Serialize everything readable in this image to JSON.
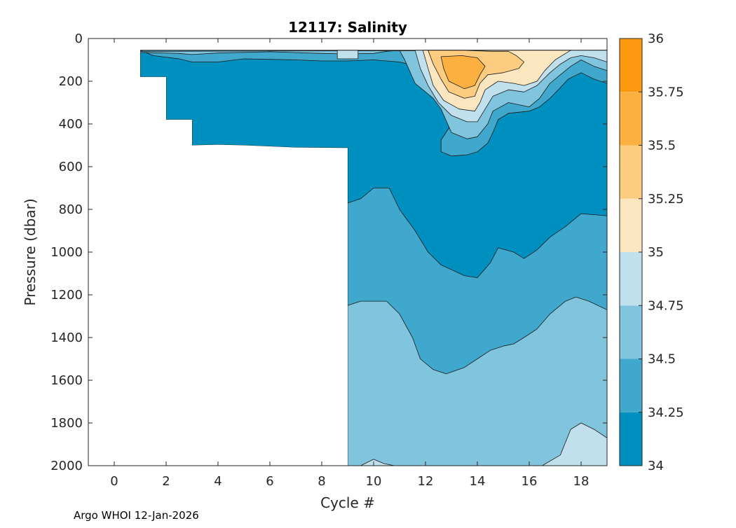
{
  "chart_data": {
    "type": "contour",
    "title": "12117:  Salinity",
    "xlabel": "Cycle #",
    "ylabel": "Pressure (dbar)",
    "xlim": [
      -1,
      19
    ],
    "ylim": [
      2000,
      0
    ],
    "y_reversed": true,
    "xticks": [
      0,
      2,
      4,
      6,
      8,
      10,
      12,
      14,
      16,
      18
    ],
    "yticks": [
      0,
      200,
      400,
      600,
      800,
      1000,
      1200,
      1400,
      1600,
      1800,
      2000
    ],
    "grid": false,
    "colorbar": {
      "position": "right",
      "ticks": [
        34,
        34.25,
        34.5,
        34.75,
        35,
        35.25,
        35.5,
        35.75,
        36
      ],
      "levels": [
        {
          "min": 34,
          "max": 34.25,
          "color": "#0090bf"
        },
        {
          "min": 34.25,
          "max": 34.5,
          "color": "#40a8cc"
        },
        {
          "min": 34.5,
          "max": 34.75,
          "color": "#80c4de"
        },
        {
          "min": 34.75,
          "max": 35,
          "color": "#bfe0ec"
        },
        {
          "min": 35,
          "max": 35.25,
          "color": "#fce6c0"
        },
        {
          "min": 35.25,
          "max": 35.5,
          "color": "#fccc80"
        },
        {
          "min": 35.5,
          "max": 35.75,
          "color": "#fcb040"
        },
        {
          "min": 35.75,
          "max": 36,
          "color": "#fc9910"
        }
      ]
    },
    "regions": [
      {
        "level": 0,
        "points": [
          [
            1,
            55
          ],
          [
            1,
            180
          ],
          [
            2,
            180
          ],
          [
            2,
            380
          ],
          [
            3,
            380
          ],
          [
            3,
            500
          ],
          [
            4,
            497
          ],
          [
            5,
            500
          ],
          [
            6,
            505
          ],
          [
            7,
            510
          ],
          [
            9,
            512
          ],
          [
            9,
            2000
          ],
          [
            19,
            2000
          ],
          [
            19,
            55
          ]
        ]
      },
      {
        "level": 1,
        "points": [
          [
            9,
            2000
          ],
          [
            9,
            770
          ],
          [
            9.5,
            750
          ],
          [
            10,
            700
          ],
          [
            10.6,
            700
          ],
          [
            11,
            800
          ],
          [
            11.6,
            900
          ],
          [
            12.1,
            1000
          ],
          [
            12.6,
            1060
          ],
          [
            13.5,
            1110
          ],
          [
            14,
            1120
          ],
          [
            14.5,
            1050
          ],
          [
            14.8,
            980
          ],
          [
            15.4,
            1000
          ],
          [
            15.8,
            1030
          ],
          [
            16.3,
            990
          ],
          [
            16.8,
            930
          ],
          [
            17.4,
            880
          ],
          [
            18,
            820
          ],
          [
            19,
            830
          ],
          [
            19,
            2000
          ]
        ]
      },
      {
        "level": 2,
        "points": [
          [
            9,
            2000
          ],
          [
            9,
            1250
          ],
          [
            9.5,
            1230
          ],
          [
            10.5,
            1230
          ],
          [
            11,
            1290
          ],
          [
            11.5,
            1400
          ],
          [
            11.8,
            1500
          ],
          [
            12.3,
            1550
          ],
          [
            12.8,
            1570
          ],
          [
            13.5,
            1540
          ],
          [
            14,
            1500
          ],
          [
            14.5,
            1460
          ],
          [
            15,
            1440
          ],
          [
            15.4,
            1430
          ],
          [
            15.8,
            1400
          ],
          [
            16.3,
            1360
          ],
          [
            16.8,
            1290
          ],
          [
            17.4,
            1230
          ],
          [
            17.8,
            1210
          ],
          [
            18.3,
            1230
          ],
          [
            19,
            1270
          ],
          [
            19,
            2000
          ]
        ]
      },
      {
        "level": 3,
        "points": [
          [
            16.5,
            2000
          ],
          [
            17.2,
            1950
          ],
          [
            17.6,
            1830
          ],
          [
            18,
            1800
          ],
          [
            18.5,
            1830
          ],
          [
            19,
            1870
          ],
          [
            19,
            2000
          ]
        ]
      },
      {
        "level": 3,
        "points": [
          [
            9.5,
            2000
          ],
          [
            10,
            1970
          ],
          [
            10.4,
            1990
          ],
          [
            10.8,
            2000
          ]
        ]
      },
      {
        "level": 1,
        "points": [
          [
            1,
            55
          ],
          [
            1.5,
            80
          ],
          [
            2.5,
            95
          ],
          [
            3,
            110
          ],
          [
            4,
            110
          ],
          [
            5,
            95
          ],
          [
            7,
            100
          ],
          [
            8,
            105
          ],
          [
            9,
            105
          ],
          [
            10,
            100
          ],
          [
            11,
            110
          ],
          [
            12,
            140
          ],
          [
            12.4,
            190
          ],
          [
            12.6,
            260
          ],
          [
            12.8,
            310
          ],
          [
            13,
            350
          ],
          [
            12.9,
            420
          ],
          [
            12.6,
            475
          ],
          [
            12.6,
            530
          ],
          [
            13,
            550
          ],
          [
            13.6,
            545
          ],
          [
            14,
            530
          ],
          [
            14.4,
            490
          ],
          [
            14.6,
            440
          ],
          [
            14.8,
            380
          ],
          [
            15.2,
            350
          ],
          [
            16,
            340
          ],
          [
            16.4,
            320
          ],
          [
            16.8,
            280
          ],
          [
            17.2,
            230
          ],
          [
            17.5,
            190
          ],
          [
            18,
            160
          ],
          [
            18.5,
            190
          ],
          [
            19,
            210
          ],
          [
            19,
            55
          ]
        ]
      },
      {
        "level": 2,
        "points": [
          [
            1,
            60
          ],
          [
            1,
            65
          ],
          [
            2.5,
            70
          ],
          [
            3,
            75
          ],
          [
            4,
            68
          ],
          [
            6,
            62
          ],
          [
            8,
            70
          ],
          [
            9,
            72
          ],
          [
            10,
            70
          ],
          [
            10.5,
            60
          ],
          [
            11,
            55
          ],
          [
            11.2,
            100
          ],
          [
            11.6,
            210
          ],
          [
            12.3,
            280
          ],
          [
            12.6,
            330
          ],
          [
            13,
            440
          ],
          [
            13.6,
            470
          ],
          [
            14,
            460
          ],
          [
            14.4,
            400
          ],
          [
            14.6,
            340
          ],
          [
            15.2,
            300
          ],
          [
            16,
            320
          ],
          [
            16.4,
            280
          ],
          [
            16.8,
            210
          ],
          [
            17.2,
            170
          ],
          [
            17.6,
            130
          ],
          [
            18,
            100
          ],
          [
            18.5,
            130
          ],
          [
            19,
            150
          ],
          [
            19,
            55
          ]
        ]
      },
      {
        "level": 3,
        "points": [
          [
            11.6,
            55
          ],
          [
            11.8,
            140
          ],
          [
            12.1,
            220
          ],
          [
            12.5,
            300
          ],
          [
            13,
            360
          ],
          [
            13.6,
            390
          ],
          [
            14,
            390
          ],
          [
            14.3,
            330
          ],
          [
            14.6,
            270
          ],
          [
            15.2,
            240
          ],
          [
            15.8,
            250
          ],
          [
            16.3,
            220
          ],
          [
            16.8,
            160
          ],
          [
            17.2,
            120
          ],
          [
            17.6,
            90
          ],
          [
            18,
            80
          ],
          [
            18.5,
            90
          ],
          [
            19,
            110
          ],
          [
            19,
            55
          ]
        ]
      },
      {
        "level": 3,
        "points": [
          [
            8.6,
            55
          ],
          [
            8.6,
            95
          ],
          [
            9.4,
            95
          ],
          [
            9.4,
            55
          ]
        ]
      },
      {
        "level": 4,
        "points": [
          [
            11.9,
            55
          ],
          [
            12.1,
            140
          ],
          [
            12.3,
            220
          ],
          [
            12.7,
            290
          ],
          [
            13.3,
            330
          ],
          [
            13.9,
            340
          ],
          [
            14.1,
            300
          ],
          [
            14.3,
            240
          ],
          [
            14.8,
            200
          ],
          [
            15.4,
            210
          ],
          [
            15.8,
            220
          ],
          [
            16.3,
            200
          ],
          [
            16.6,
            150
          ],
          [
            17,
            100
          ],
          [
            17.4,
            70
          ],
          [
            17.6,
            55
          ]
        ]
      },
      {
        "level": 5,
        "points": [
          [
            12.1,
            55
          ],
          [
            12.3,
            120
          ],
          [
            12.6,
            190
          ],
          [
            12.9,
            250
          ],
          [
            13.5,
            280
          ],
          [
            13.9,
            270
          ],
          [
            14.1,
            210
          ],
          [
            14.4,
            170
          ],
          [
            15,
            160
          ],
          [
            15.6,
            140
          ],
          [
            15.8,
            110
          ],
          [
            15.5,
            80
          ],
          [
            15.2,
            60
          ],
          [
            14.5,
            60
          ],
          [
            13.5,
            55
          ]
        ]
      },
      {
        "level": 6,
        "points": [
          [
            12.6,
            85
          ],
          [
            12.7,
            140
          ],
          [
            12.9,
            200
          ],
          [
            13.5,
            235
          ],
          [
            13.9,
            220
          ],
          [
            14.1,
            170
          ],
          [
            14.3,
            130
          ],
          [
            14,
            90
          ],
          [
            13.4,
            80
          ]
        ]
      }
    ],
    "blank_patch": {
      "points": [
        [
          1,
          55
        ],
        [
          1,
          180
        ],
        [
          2,
          180
        ],
        [
          2,
          380
        ],
        [
          3,
          380
        ],
        [
          3,
          500
        ],
        [
          4,
          497
        ],
        [
          5,
          500
        ],
        [
          6,
          505
        ],
        [
          7,
          510
        ],
        [
          9,
          512
        ],
        [
          9,
          2000
        ],
        [
          -1,
          2000
        ],
        [
          -1,
          0
        ],
        [
          1,
          0
        ]
      ]
    },
    "annotation": "Argo WHOI 12-Jan-2026"
  }
}
